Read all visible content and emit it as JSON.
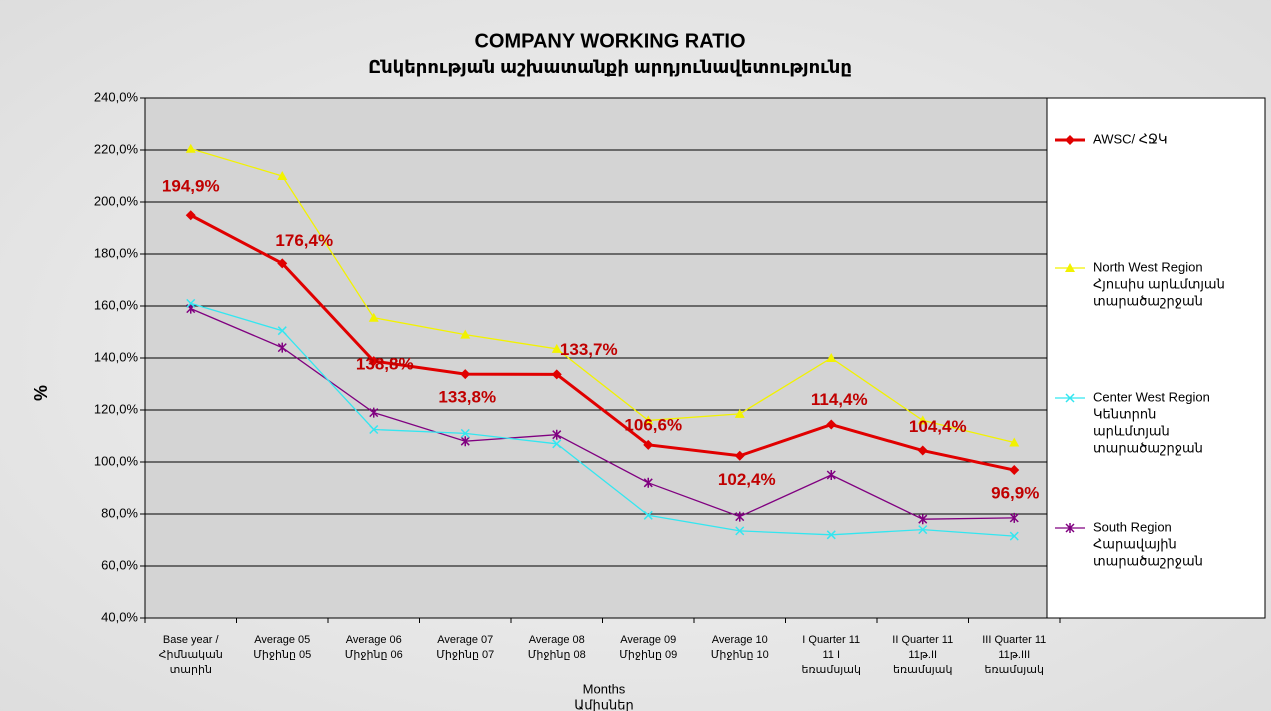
{
  "chart_data": {
    "type": "line",
    "title": "COMPANY  WORKING  RATIO",
    "subtitle": "Ընկերության աշխատանքի արդյունավետությունը",
    "y_label": "%",
    "x_label": [
      "Months",
      "Ամիսներ"
    ],
    "categories": [
      [
        "Base year /",
        "Հիմնական",
        "տարին"
      ],
      [
        "Average 05",
        "Միջինը 05"
      ],
      [
        "Average 06",
        "Միջինը 06"
      ],
      [
        "Average 07",
        "Միջինը 07"
      ],
      [
        "Average 08",
        "Միջինը 08"
      ],
      [
        "Average 09",
        "Միջինը 09"
      ],
      [
        "Average 10",
        "Միջինը 10"
      ],
      [
        "I Quarter 11",
        "11 I",
        "եռամսյակ"
      ],
      [
        "II Quarter 11",
        "11թ.II",
        "եռամսյակ"
      ],
      [
        "III Quarter 11",
        "11թ.III",
        "եռամսյակ"
      ]
    ],
    "series": [
      {
        "name": [
          "AWSC/ ՀՋԿ"
        ],
        "color": "#e00000",
        "marker": "diamond",
        "values": [
          194.9,
          176.4,
          138.8,
          133.8,
          133.7,
          106.6,
          102.4,
          114.4,
          104.4,
          96.9
        ],
        "value_labels": [
          "194,9%",
          "176,4%",
          "138,8%",
          "133,8%",
          "133,7%",
          "106,6%",
          "102,4%",
          "114,4%",
          "104,4%",
          "96,9%"
        ]
      },
      {
        "name": [
          "North West Region",
          "Հյուսիս արևմտյան",
          "տարածաշրջան"
        ],
        "color": "#f2f200",
        "marker": "triangle",
        "values": [
          220.5,
          210,
          155.5,
          149,
          143.5,
          116,
          118.5,
          140,
          116,
          107.5
        ]
      },
      {
        "name": [
          "Center West Region",
          "Կենտրոն",
          "արևմտյան",
          "տարածաշրջան"
        ],
        "color": "#33e6f0",
        "marker": "x",
        "values": [
          161,
          150.5,
          112.5,
          111,
          107,
          79.5,
          73.5,
          72,
          74,
          71.5
        ]
      },
      {
        "name": [
          "South Region",
          "Հարավային",
          "տարածաշրջան"
        ],
        "color": "#800080",
        "marker": "star",
        "values": [
          159,
          144,
          119,
          108,
          110.5,
          92,
          79,
          95,
          78,
          78.5
        ]
      }
    ],
    "ylim": [
      40,
      240
    ],
    "yticks": [
      {
        "value": 40,
        "label": "40,0%"
      },
      {
        "value": 60,
        "label": "60,0%"
      },
      {
        "value": 80,
        "label": "80,0%"
      },
      {
        "value": 100,
        "label": "100,0%"
      },
      {
        "value": 120,
        "label": "120,0%"
      },
      {
        "value": 140,
        "label": "140,0%"
      },
      {
        "value": 160,
        "label": "160,0%"
      },
      {
        "value": 180,
        "label": "180,0%"
      },
      {
        "value": 200,
        "label": "200,0%"
      },
      {
        "value": 220,
        "label": "220,0%"
      },
      {
        "value": 240,
        "label": "240,0%"
      }
    ],
    "grid": true,
    "legend": "right"
  }
}
